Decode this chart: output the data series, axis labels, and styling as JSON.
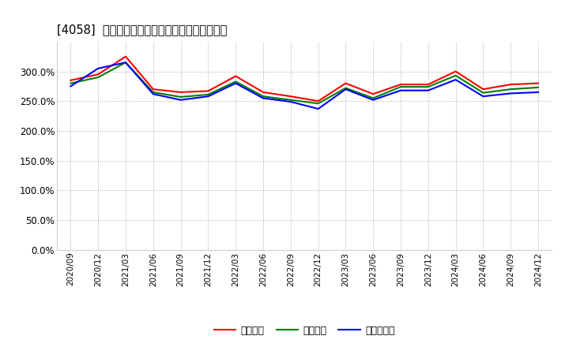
{
  "title": "[4058]  流動比率、当座比率、現預金比率の推移",
  "x_labels": [
    "2020/09",
    "2020/12",
    "2021/03",
    "2021/06",
    "2021/09",
    "2021/12",
    "2022/03",
    "2022/06",
    "2022/09",
    "2022/12",
    "2023/03",
    "2023/06",
    "2023/09",
    "2023/12",
    "2024/03",
    "2024/06",
    "2024/09",
    "2024/12"
  ],
  "ryudo": [
    285,
    295,
    325,
    270,
    265,
    267,
    292,
    265,
    258,
    250,
    280,
    262,
    278,
    278,
    300,
    270,
    278,
    280
  ],
  "toza": [
    280,
    290,
    315,
    265,
    257,
    261,
    283,
    258,
    252,
    246,
    272,
    255,
    274,
    274,
    293,
    264,
    270,
    273
  ],
  "genyo": [
    275,
    305,
    315,
    262,
    252,
    258,
    280,
    255,
    249,
    237,
    270,
    252,
    268,
    268,
    286,
    258,
    263,
    265
  ],
  "ryudo_color": "#ff0000",
  "toza_color": "#008000",
  "genyo_color": "#0000ff",
  "ylim": [
    0,
    350
  ],
  "yticks": [
    0,
    50,
    100,
    150,
    200,
    250,
    300
  ],
  "bg_color": "#ffffff",
  "grid_color": "#aaaaaa",
  "legend_labels": [
    "流動比率",
    "当座比率",
    "現預金比率"
  ]
}
